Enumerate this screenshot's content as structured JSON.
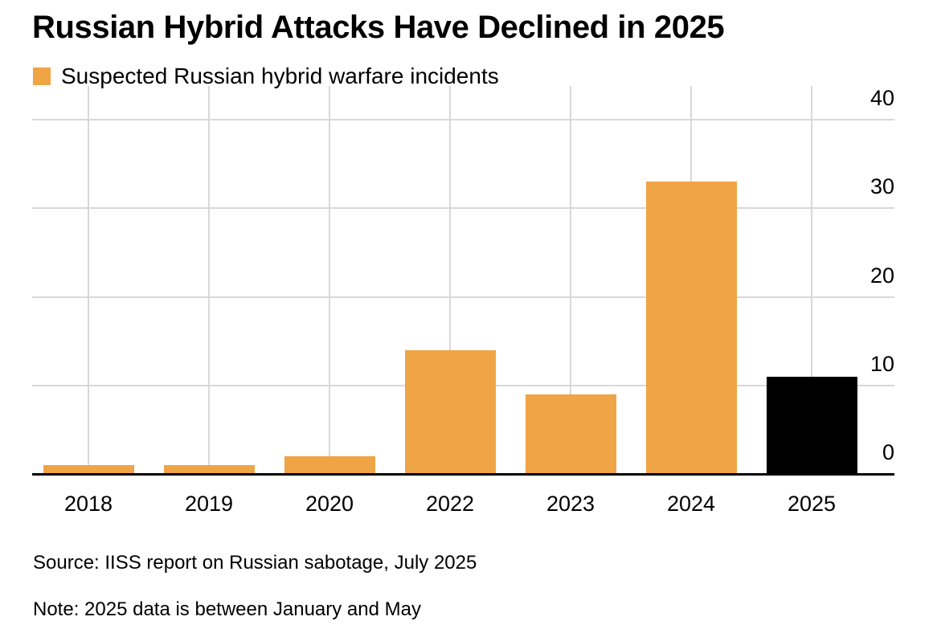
{
  "title": "Russian Hybrid Attacks Have Declined in 2025",
  "legend": {
    "label": "Suspected Russian hybrid warfare incidents"
  },
  "footer": {
    "source": "Source: IISS report on Russian sabotage, July 2025",
    "note": "Note: 2025 data is between January and May"
  },
  "colors": {
    "bar_orange": "#EFA445",
    "bar_black": "#000000",
    "gridline": "#D8D8D8",
    "axis_line": "#000000",
    "text": "#000000",
    "background": "#FFFFFF"
  },
  "chart_data": {
    "type": "bar",
    "title": "Russian Hybrid Attacks Have Declined in 2025",
    "categories": [
      "2018",
      "2019",
      "2020",
      "2022",
      "2023",
      "2024",
      "2025"
    ],
    "values": [
      1,
      1,
      2,
      14,
      9,
      33,
      11
    ],
    "bar_color_keys": [
      "bar_orange",
      "bar_orange",
      "bar_orange",
      "bar_orange",
      "bar_orange",
      "bar_orange",
      "bar_black"
    ],
    "series_name": "Suspected Russian hybrid warfare incidents",
    "xlabel": "",
    "ylabel": "",
    "yticks": [
      0,
      10,
      20,
      30,
      40
    ],
    "ylim": [
      0,
      44
    ],
    "y_axis_side": "right",
    "grid": true,
    "legend_position": "top-left",
    "note": "2025 data is between January and May (2025 bar shown in black)"
  }
}
